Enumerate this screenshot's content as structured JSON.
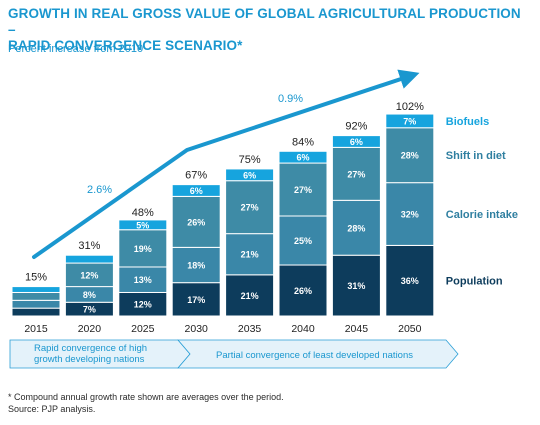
{
  "title_line1": "GROWTH IN REAL GROSS VALUE OF GLOBAL AGRICULTURAL PRODUCTION –",
  "title_line2": "RAPID CONVERGENCE SCENARIO*",
  "subtitle": "Percent increase from 2010",
  "footnote_line1": "* Compound annual growth rate shown are averages over the period.",
  "footnote_line2": "Source: PJP analysis.",
  "colors": {
    "title": "#1a97cf",
    "Population": "#0d3c5c",
    "Calorie intake": "#3a87a8",
    "Shift in diet": "#3e8ba6",
    "Biofuels": "#16a4de",
    "segment_border": "#ffffff",
    "phase_fill": "#e4f2fa",
    "phase_border": "#2a9fd6",
    "arrow": "#1a97cf"
  },
  "chart_data": {
    "type": "bar",
    "stacked": true,
    "categories": [
      "2015",
      "2020",
      "2025",
      "2030",
      "2035",
      "2040",
      "2045",
      "2050"
    ],
    "totals": [
      15,
      31,
      48,
      67,
      75,
      84,
      92,
      102
    ],
    "total_labels": [
      "15%",
      "31%",
      "48%",
      "67%",
      "75%",
      "84%",
      "92%",
      "102%"
    ],
    "ylim": [
      0,
      102
    ],
    "series": [
      {
        "name": "Population",
        "values": [
          4,
          7,
          12,
          17,
          21,
          26,
          31,
          36
        ],
        "labels": [
          "",
          "7%",
          "12%",
          "17%",
          "21%",
          "26%",
          "31%",
          "36%"
        ]
      },
      {
        "name": "Calorie intake",
        "values": [
          4,
          8,
          13,
          18,
          21,
          25,
          28,
          32
        ],
        "labels": [
          "",
          "8%",
          "13%",
          "18%",
          "21%",
          "25%",
          "28%",
          "32%"
        ]
      },
      {
        "name": "Shift in diet",
        "values": [
          4,
          12,
          19,
          26,
          27,
          27,
          27,
          28
        ],
        "labels": [
          "",
          "12%",
          "19%",
          "26%",
          "27%",
          "27%",
          "27%",
          "28%"
        ]
      },
      {
        "name": "Biofuels",
        "values": [
          3,
          4,
          5,
          6,
          6,
          6,
          6,
          7
        ],
        "labels": [
          "",
          "",
          "5%",
          "6%",
          "6%",
          "6%",
          "6%",
          "7%"
        ]
      }
    ],
    "growth_annotations": [
      "2.6%",
      "0.9%"
    ],
    "phases": [
      "Rapid convergence of high growth developing nations",
      "Partial convergence of least developed nations"
    ]
  }
}
